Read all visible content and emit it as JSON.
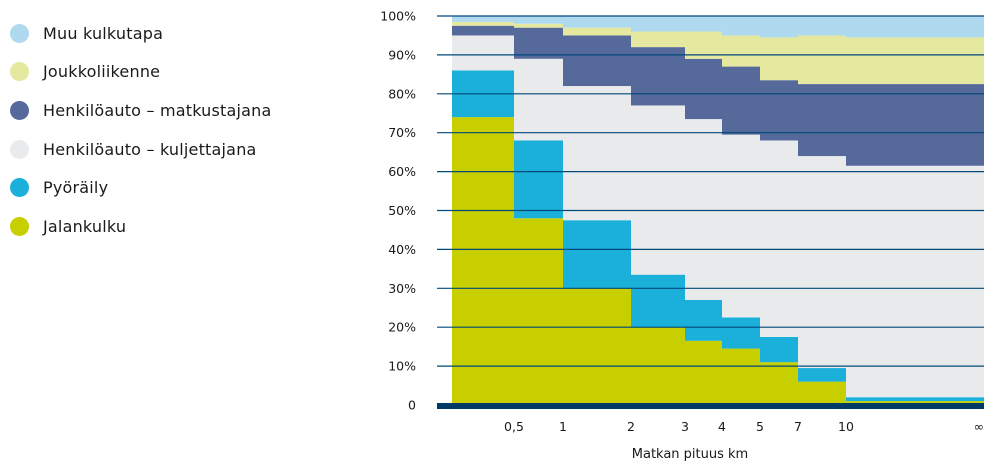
{
  "chart_data": {
    "type": "area",
    "xlabel": "Matkan pituus km",
    "ylabel": "",
    "ylim": [
      0,
      100
    ],
    "y_ticks": [
      "0",
      "10%",
      "20%",
      "30%",
      "40%",
      "50%",
      "60%",
      "70%",
      "80%",
      "90%",
      "100%"
    ],
    "x_tick_labels": [
      "0,5",
      "1",
      "2",
      "3",
      "4",
      "5",
      "7",
      "10",
      "∞"
    ],
    "bins": [
      "0–0,5",
      "0,5–1",
      "1–2",
      "2–3",
      "3–4",
      "4–5",
      "5–7",
      "7–10",
      "10–∞"
    ],
    "series": [
      {
        "name": "Jalankulku",
        "color": "#c8cf00",
        "values": [
          74,
          48,
          30,
          20,
          16.5,
          14.5,
          11,
          6,
          1
        ]
      },
      {
        "name": "Pyöräily",
        "color": "#1ab0da",
        "values": [
          12,
          20,
          17.5,
          13.5,
          10.5,
          8,
          6.5,
          3.5,
          1
        ]
      },
      {
        "name": "Henkilöauto – kuljettajana",
        "color": "#e8eaeb",
        "values": [
          9,
          21,
          34.5,
          43.5,
          46.5,
          47,
          50.5,
          54.5,
          59.5
        ]
      },
      {
        "name": "Henkilöauto – matkustajana",
        "color": "#56699b",
        "values": [
          2.5,
          8,
          13,
          15,
          15.5,
          17.5,
          15.5,
          18.5,
          21
        ]
      },
      {
        "name": "Joukkoliikenne",
        "color": "#e5e89f",
        "values": [
          1,
          1,
          2,
          4,
          7,
          8,
          11,
          12.5,
          12
        ]
      },
      {
        "name": "Muu kulkutapa",
        "color": "#afd9ee",
        "values": [
          1.5,
          2,
          3,
          4,
          4,
          5,
          5.5,
          5,
          5.5
        ]
      }
    ],
    "legend_position": "left",
    "grid": true
  },
  "colors": {
    "gridline": "#00497a",
    "baseline": "#003a66"
  }
}
